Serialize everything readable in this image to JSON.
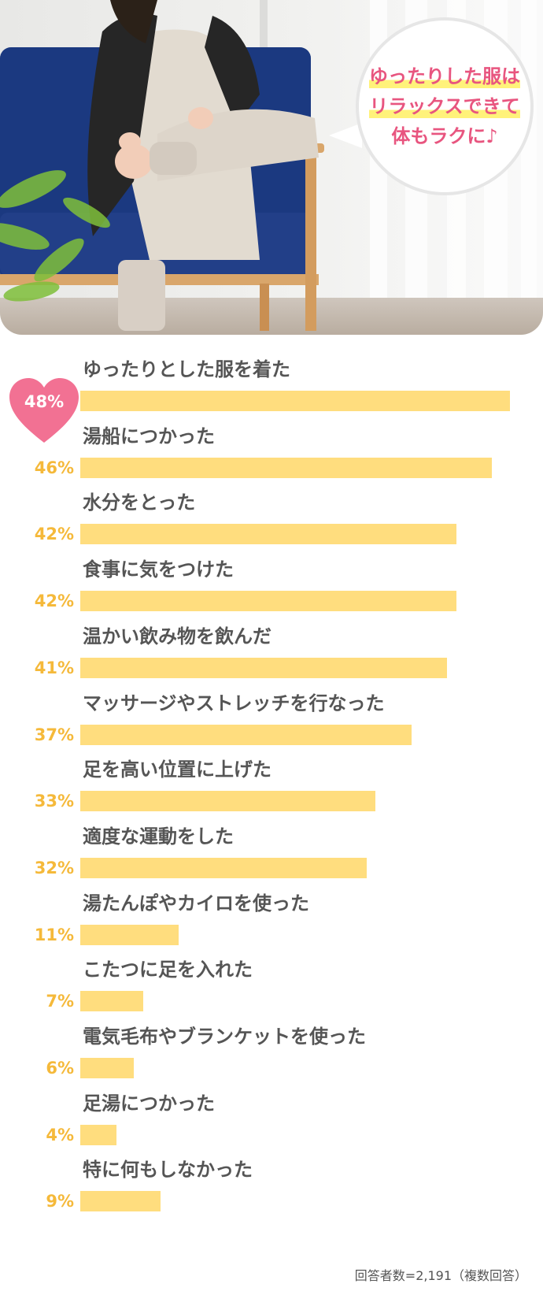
{
  "hero": {
    "bubble_lines": [
      "ゆったりした服は",
      "リラックスできて",
      "体もラクに♪"
    ]
  },
  "chart_data": {
    "type": "bar",
    "orientation": "horizontal",
    "categories": [
      "ゆったりとした服を着た",
      "湯船につかった",
      "水分をとった",
      "食事に気をつけた",
      "温かい飲み物を飲んだ",
      "マッサージやストレッチを行なった",
      "足を高い位置に上げた",
      "適度な運動をした",
      "湯たんぽやカイロを使った",
      "こたつに足を入れた",
      "電気毛布やブランケットを使った",
      "足湯につかった",
      "特に何もしなかった"
    ],
    "values": [
      48,
      46,
      42,
      42,
      41,
      37,
      33,
      32,
      11,
      7,
      6,
      4,
      9
    ],
    "value_labels": [
      "48%",
      "46%",
      "42%",
      "42%",
      "41%",
      "37%",
      "33%",
      "32%",
      "11%",
      "7%",
      "6%",
      "4%",
      "9%"
    ],
    "unit": "%",
    "xlim": [
      0,
      48
    ],
    "highlight_index": 0,
    "colors": {
      "bar": "#ffdd7e",
      "label": "#555555",
      "value": "#f5b93a",
      "heart": "#f27193"
    },
    "note": "回答者数=2,191（複数回答）"
  }
}
